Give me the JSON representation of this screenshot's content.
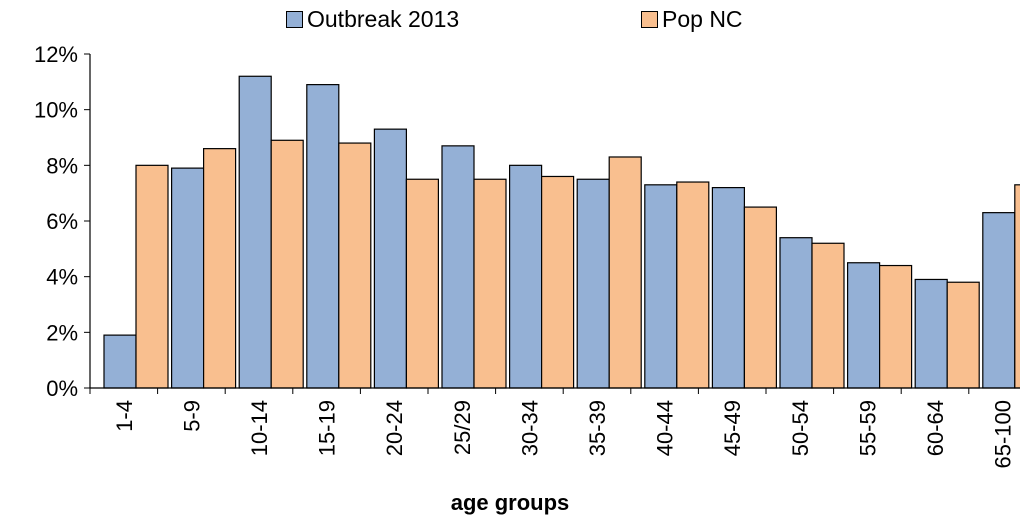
{
  "chart_data": {
    "type": "bar",
    "title": "",
    "xlabel": "age groups",
    "ylabel": "",
    "categories": [
      "1-4",
      "5-9",
      "10-14",
      "15-19",
      "20-24",
      "25/29",
      "30-34",
      "35-39",
      "40-44",
      "45-49",
      "50-54",
      "55-59",
      "60-64",
      "65-100"
    ],
    "series": [
      {
        "name": "Outbreak 2013",
        "color": "#94b0d6",
        "values": [
          1.9,
          7.9,
          11.2,
          10.9,
          9.3,
          8.7,
          8.0,
          7.5,
          7.3,
          7.2,
          5.4,
          4.5,
          3.9,
          6.3
        ]
      },
      {
        "name": "Pop NC",
        "color": "#f9bf8f",
        "values": [
          8.0,
          8.6,
          8.9,
          8.8,
          7.5,
          7.5,
          7.6,
          8.3,
          7.4,
          6.5,
          5.2,
          4.4,
          3.8,
          7.3
        ]
      }
    ],
    "yticks": [
      "0%",
      "2%",
      "4%",
      "6%",
      "8%",
      "10%",
      "12%"
    ],
    "ylim": [
      0,
      12
    ],
    "grid": false,
    "legend_position": "top"
  }
}
